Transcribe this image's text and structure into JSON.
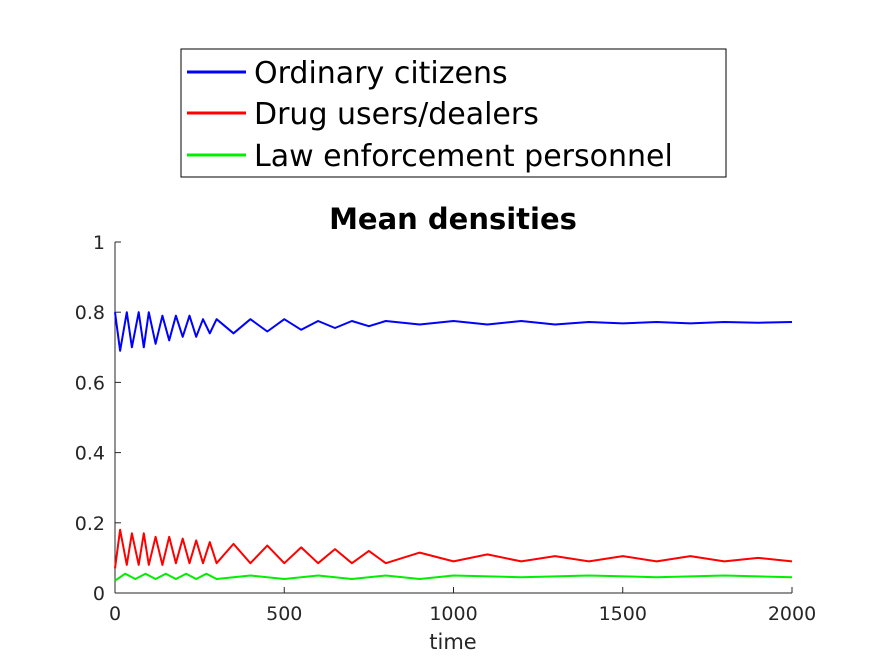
{
  "chart_data": {
    "type": "line",
    "title": "Mean densities",
    "xlabel": "time",
    "ylabel": "",
    "xlim": [
      0,
      2000
    ],
    "ylim": [
      0,
      1
    ],
    "xticks": [
      0,
      500,
      1000,
      1500,
      2000
    ],
    "xtick_labels": [
      "0",
      "500",
      "1000",
      "1500",
      "2000"
    ],
    "yticks": [
      0,
      0.2,
      0.4,
      0.6,
      0.8,
      1
    ],
    "ytick_labels": [
      "0",
      "0.2",
      "0.4",
      "0.6",
      "0.8",
      "1"
    ],
    "grid": false,
    "legend_position": "top-center, outside above axes",
    "series": [
      {
        "name": "Ordinary citizens",
        "color": "#0000ff",
        "x": [
          0,
          15,
          35,
          50,
          70,
          85,
          100,
          120,
          140,
          160,
          180,
          200,
          220,
          240,
          260,
          280,
          300,
          350,
          400,
          450,
          500,
          550,
          600,
          650,
          700,
          750,
          800,
          900,
          1000,
          1100,
          1200,
          1300,
          1400,
          1500,
          1600,
          1700,
          1800,
          1900,
          2000
        ],
        "values": [
          0.8,
          0.69,
          0.8,
          0.7,
          0.8,
          0.7,
          0.8,
          0.71,
          0.79,
          0.72,
          0.79,
          0.73,
          0.79,
          0.73,
          0.78,
          0.74,
          0.78,
          0.74,
          0.78,
          0.745,
          0.78,
          0.75,
          0.775,
          0.755,
          0.775,
          0.76,
          0.775,
          0.765,
          0.775,
          0.765,
          0.775,
          0.765,
          0.772,
          0.768,
          0.772,
          0.768,
          0.772,
          0.77,
          0.772
        ]
      },
      {
        "name": "Drug users/dealers",
        "color": "#ff0000",
        "x": [
          0,
          15,
          35,
          50,
          70,
          85,
          100,
          120,
          140,
          160,
          180,
          200,
          220,
          240,
          260,
          280,
          300,
          350,
          400,
          450,
          500,
          550,
          600,
          650,
          700,
          750,
          800,
          900,
          1000,
          1100,
          1200,
          1300,
          1400,
          1500,
          1600,
          1700,
          1800,
          1900,
          2000
        ],
        "values": [
          0.07,
          0.18,
          0.08,
          0.17,
          0.08,
          0.17,
          0.08,
          0.16,
          0.08,
          0.16,
          0.085,
          0.155,
          0.085,
          0.15,
          0.085,
          0.145,
          0.085,
          0.14,
          0.085,
          0.135,
          0.085,
          0.13,
          0.085,
          0.125,
          0.085,
          0.12,
          0.085,
          0.115,
          0.09,
          0.11,
          0.09,
          0.105,
          0.09,
          0.105,
          0.09,
          0.105,
          0.09,
          0.1,
          0.09
        ]
      },
      {
        "name": "Law enforcement personnel",
        "color": "#00ee00",
        "x": [
          0,
          30,
          60,
          90,
          120,
          150,
          180,
          210,
          240,
          270,
          300,
          400,
          500,
          600,
          700,
          800,
          900,
          1000,
          1200,
          1400,
          1600,
          1800,
          2000
        ],
        "values": [
          0.035,
          0.055,
          0.04,
          0.055,
          0.04,
          0.055,
          0.04,
          0.055,
          0.04,
          0.055,
          0.04,
          0.05,
          0.04,
          0.05,
          0.04,
          0.05,
          0.04,
          0.05,
          0.045,
          0.05,
          0.045,
          0.05,
          0.045
        ]
      }
    ]
  }
}
